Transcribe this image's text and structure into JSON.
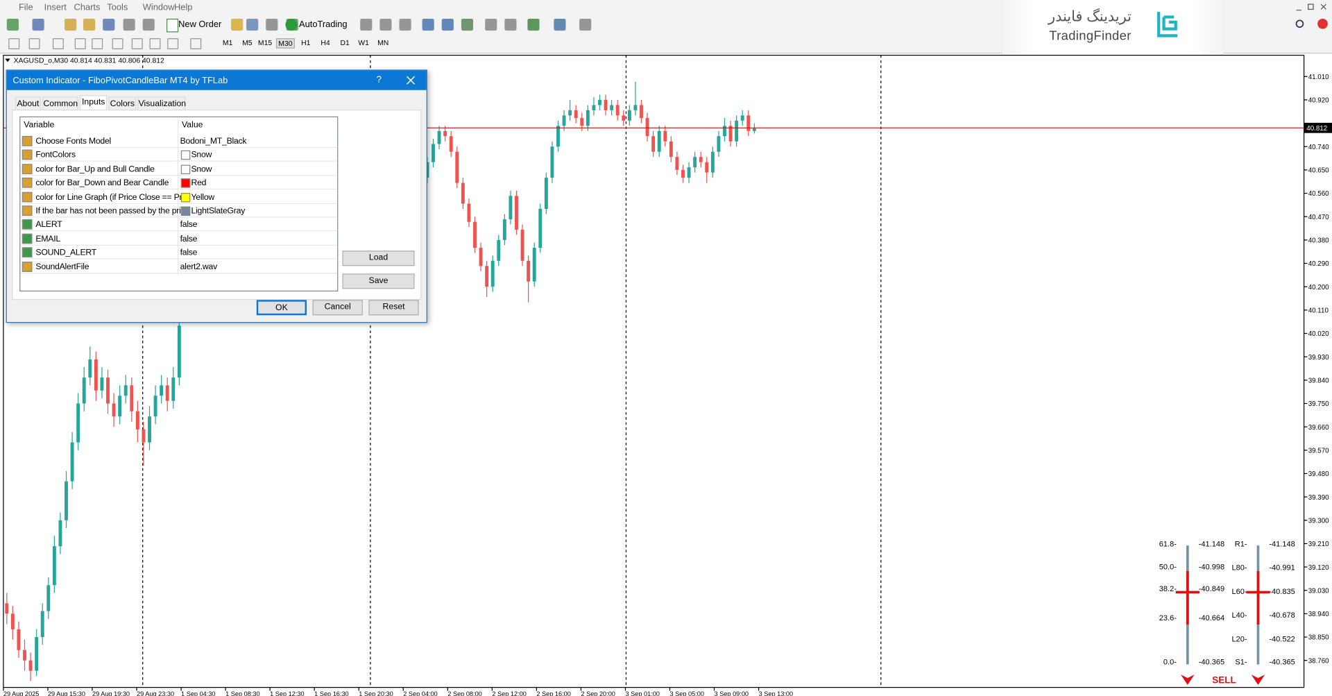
{
  "menu": [
    "File",
    "Insert",
    "Charts",
    "Tools",
    "Window",
    "Help"
  ],
  "toolbar": {
    "new_order": "New Order",
    "auto_trading": "AutoTrading",
    "timeframes": [
      "M1",
      "M5",
      "M15",
      "M30",
      "H1",
      "H4",
      "D1",
      "W1",
      "MN"
    ]
  },
  "logo": {
    "arabic": "تریدینگ فایندر",
    "latin": "TradingFinder"
  },
  "chart": {
    "header": "XAGUSD_o,M30  40.814 40.831 40.806 40.812",
    "bid": 40.812,
    "ylim": [
      38.656,
      41.092
    ],
    "bull_color": "#26a69a",
    "bear_color": "#ef5350",
    "bid_line_color": "#e00000",
    "price_ticks": [
      {
        "value": 41.01,
        "label": "41.010"
      },
      {
        "value": 40.92,
        "label": "40.920"
      },
      {
        "value": 40.74,
        "label": "40.740"
      },
      {
        "value": 40.65,
        "label": "40.650"
      },
      {
        "value": 40.56,
        "label": "40.560"
      },
      {
        "value": 40.47,
        "label": "40.470"
      },
      {
        "value": 40.38,
        "label": "40.380"
      },
      {
        "value": 40.29,
        "label": "40.290"
      },
      {
        "value": 40.2,
        "label": "40.200"
      },
      {
        "value": 40.11,
        "label": "40.110"
      },
      {
        "value": 40.02,
        "label": "40.020"
      },
      {
        "value": 39.93,
        "label": "39.930"
      },
      {
        "value": 39.84,
        "label": "39.840"
      },
      {
        "value": 39.75,
        "label": "39.750"
      },
      {
        "value": 39.66,
        "label": "39.660"
      },
      {
        "value": 39.57,
        "label": "39.570"
      },
      {
        "value": 39.48,
        "label": "39.480"
      },
      {
        "value": 39.39,
        "label": "39.390"
      },
      {
        "value": 39.3,
        "label": "39.300"
      },
      {
        "value": 39.21,
        "label": "39.210"
      },
      {
        "value": 39.12,
        "label": "39.120"
      },
      {
        "value": 39.03,
        "label": "39.030"
      },
      {
        "value": 38.94,
        "label": "38.940"
      },
      {
        "value": 38.85,
        "label": "38.850"
      },
      {
        "value": 38.76,
        "label": "38.760"
      }
    ],
    "time_labels": [
      "29 Aug 2025",
      "29 Aug 15:30",
      "29 Aug 19:30",
      "29 Aug 23:30",
      "1 Sep 04:30",
      "1 Sep 08:30",
      "1 Sep 12:30",
      "1 Sep 16:30",
      "1 Sep 20:30",
      "2 Sep 04:00",
      "2 Sep 08:00",
      "2 Sep 12:00",
      "2 Sep 16:00",
      "2 Sep 20:00",
      "3 Sep 01:00",
      "3 Sep 05:00",
      "3 Sep 09:00",
      "3 Sep 13:00"
    ],
    "candles_left": [
      [
        38.98,
        39.02,
        38.9,
        38.94
      ],
      [
        38.94,
        38.97,
        38.84,
        38.88
      ],
      [
        38.88,
        38.91,
        38.77,
        38.8
      ],
      [
        38.8,
        38.84,
        38.72,
        38.76
      ],
      [
        38.76,
        38.79,
        38.68,
        38.72
      ],
      [
        38.72,
        38.88,
        38.7,
        38.85
      ],
      [
        38.85,
        38.98,
        38.82,
        38.95
      ],
      [
        38.95,
        39.08,
        38.92,
        39.05
      ],
      [
        39.05,
        39.24,
        39.02,
        39.2
      ],
      [
        39.2,
        39.33,
        39.17,
        39.3
      ],
      [
        39.3,
        39.49,
        39.27,
        39.45
      ],
      [
        39.45,
        39.64,
        39.42,
        39.6
      ],
      [
        39.6,
        39.79,
        39.57,
        39.75
      ],
      [
        39.75,
        39.89,
        39.72,
        39.85
      ],
      [
        39.85,
        39.97,
        39.82,
        39.92
      ],
      [
        39.92,
        39.95,
        39.76,
        39.8
      ],
      [
        39.8,
        39.89,
        39.77,
        39.85
      ],
      [
        39.85,
        39.88,
        39.71,
        39.75
      ],
      [
        39.75,
        39.79,
        39.66,
        39.7
      ],
      [
        39.7,
        39.82,
        39.67,
        39.78
      ],
      [
        39.78,
        39.86,
        39.75,
        39.82
      ],
      [
        39.82,
        39.85,
        39.68,
        39.72
      ],
      [
        39.72,
        39.76,
        39.6,
        39.65
      ],
      [
        39.65,
        39.68,
        39.51,
        39.6
      ],
      [
        39.6,
        39.74,
        39.57,
        39.7
      ],
      [
        39.7,
        39.82,
        39.67,
        39.78
      ],
      [
        39.78,
        39.86,
        39.75,
        39.82
      ],
      [
        39.82,
        39.85,
        39.72,
        39.76
      ],
      [
        39.76,
        39.89,
        39.73,
        39.85
      ],
      [
        39.85,
        40.09,
        39.82,
        40.05
      ]
    ],
    "candles_right": [
      [
        40.62,
        40.7,
        40.6,
        40.68
      ],
      [
        40.68,
        40.77,
        40.66,
        40.75
      ],
      [
        40.75,
        40.82,
        40.73,
        40.8
      ],
      [
        40.8,
        40.82,
        40.76,
        40.78
      ],
      [
        40.78,
        40.8,
        40.7,
        40.72
      ],
      [
        40.72,
        40.74,
        40.58,
        40.6
      ],
      [
        40.6,
        40.62,
        40.5,
        40.52
      ],
      [
        40.52,
        40.54,
        40.43,
        40.45
      ],
      [
        40.45,
        40.47,
        40.33,
        40.35
      ],
      [
        40.35,
        40.37,
        40.26,
        40.28
      ],
      [
        40.28,
        40.3,
        40.16,
        40.2
      ],
      [
        40.2,
        40.32,
        40.18,
        40.3
      ],
      [
        40.3,
        40.4,
        40.28,
        40.38
      ],
      [
        40.38,
        40.48,
        40.36,
        40.46
      ],
      [
        40.46,
        40.57,
        40.44,
        40.55
      ],
      [
        40.55,
        40.57,
        40.4,
        40.42
      ],
      [
        40.42,
        40.44,
        40.28,
        40.3
      ],
      [
        40.3,
        40.32,
        40.14,
        40.22
      ],
      [
        40.22,
        40.37,
        40.2,
        40.35
      ],
      [
        40.35,
        40.52,
        40.33,
        40.5
      ],
      [
        40.5,
        40.64,
        40.48,
        40.62
      ],
      [
        40.62,
        40.76,
        40.6,
        40.74
      ],
      [
        40.74,
        40.84,
        40.72,
        40.82
      ],
      [
        40.82,
        40.88,
        40.8,
        40.86
      ],
      [
        40.86,
        40.92,
        40.84,
        40.88
      ],
      [
        40.88,
        40.9,
        40.83,
        40.85
      ],
      [
        40.85,
        40.87,
        40.8,
        40.82
      ],
      [
        40.82,
        40.9,
        40.8,
        40.88
      ],
      [
        40.88,
        40.93,
        40.86,
        40.9
      ],
      [
        40.9,
        40.94,
        40.88,
        40.92
      ],
      [
        40.92,
        40.94,
        40.86,
        40.88
      ],
      [
        40.88,
        40.92,
        40.86,
        40.9
      ],
      [
        40.9,
        40.92,
        40.84,
        40.86
      ],
      [
        40.86,
        40.88,
        40.82,
        40.84
      ],
      [
        40.84,
        40.9,
        40.82,
        40.88
      ],
      [
        40.88,
        40.99,
        40.86,
        40.9
      ],
      [
        40.9,
        40.92,
        40.83,
        40.85
      ],
      [
        40.85,
        40.87,
        40.76,
        40.78
      ],
      [
        40.78,
        40.8,
        40.7,
        40.72
      ],
      [
        40.72,
        40.82,
        40.7,
        40.8
      ],
      [
        40.8,
        40.82,
        40.74,
        40.76
      ],
      [
        40.76,
        40.78,
        40.68,
        40.7
      ],
      [
        40.7,
        40.72,
        40.63,
        40.65
      ],
      [
        40.65,
        40.67,
        40.6,
        40.62
      ],
      [
        40.62,
        40.68,
        40.6,
        40.66
      ],
      [
        40.66,
        40.72,
        40.64,
        40.7
      ],
      [
        40.7,
        40.72,
        40.66,
        40.68
      ],
      [
        40.68,
        40.7,
        40.6,
        40.64
      ],
      [
        40.64,
        40.74,
        40.62,
        40.72
      ],
      [
        40.72,
        40.8,
        40.7,
        40.78
      ],
      [
        40.78,
        40.85,
        40.76,
        40.82
      ],
      [
        40.82,
        40.84,
        40.74,
        40.76
      ],
      [
        40.76,
        40.86,
        40.74,
        40.84
      ],
      [
        40.84,
        40.88,
        40.82,
        40.86
      ],
      [
        40.86,
        40.88,
        40.78,
        40.8
      ],
      [
        40.8,
        40.83,
        40.79,
        40.81
      ]
    ]
  },
  "dialog": {
    "title": "Custom Indicator - FiboPivotCandleBar MT4 by TFLab",
    "help": "?",
    "tabs": [
      "About",
      "Common",
      "Inputs",
      "Colors",
      "Visualization"
    ],
    "columns": [
      "Variable",
      "Value"
    ],
    "rows": [
      {
        "variable": "Choose Fonts Model",
        "value": "Bodoni_MT_Black"
      },
      {
        "variable": "FontColors",
        "value": "Snow",
        "swatch": "#fffafa"
      },
      {
        "variable": "color for Bar_Up and Bull Candle",
        "value": "Snow",
        "swatch": "#fffafa"
      },
      {
        "variable": "color for Bar_Down and Bear Candle",
        "value": "Red",
        "swatch": "#ff0000"
      },
      {
        "variable": "color for Line Graph (if Price Close == Pri...",
        "value": "Yellow",
        "swatch": "#ffff00"
      },
      {
        "variable": "If the bar has not been passed by the pri...",
        "value": "LightSlateGray",
        "swatch": "#778899"
      },
      {
        "variable": "ALERT",
        "value": "false"
      },
      {
        "variable": "EMAIL",
        "value": "false"
      },
      {
        "variable": "SOUND_ALERT",
        "value": "false"
      },
      {
        "variable": "SoundAlertFile",
        "value": "alert2.wav"
      }
    ],
    "side_buttons": [
      "Load",
      "Save"
    ],
    "buttons": [
      "OK",
      "Cancel",
      "Reset"
    ]
  },
  "pivot_panel": {
    "fib_levels": [
      "61.8-",
      "50.0-",
      "38.2-",
      "23.6-",
      "0.0-"
    ],
    "fib_values": [
      "-41.148",
      "-40.998",
      "-40.849",
      "-40.664",
      "-40.365"
    ],
    "pivot_levels": [
      "R1-",
      "L80-",
      "L60-",
      "L40-",
      "L20-",
      "S1-"
    ],
    "pivot_values": [
      "-41.148",
      "-40.991",
      "-40.835",
      "-40.678",
      "-40.522",
      "-40.365"
    ],
    "signal": "SELL"
  }
}
